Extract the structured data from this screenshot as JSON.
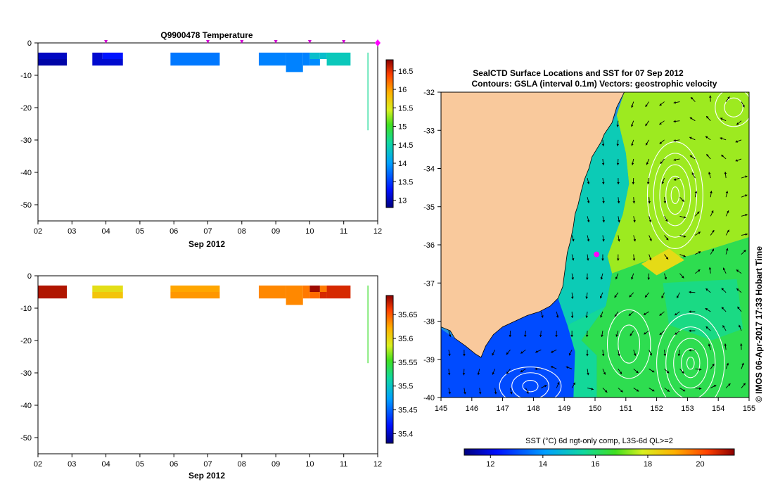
{
  "panels": {
    "temperature": {
      "title": "Q9900478  Temperature",
      "xlabel": "Sep 2012",
      "x_ticks": [
        "02",
        "03",
        "04",
        "05",
        "06",
        "07",
        "08",
        "09",
        "10",
        "11",
        "12"
      ],
      "y_ticks": [
        "0",
        "-10",
        "-20",
        "-30",
        "-40",
        "-50"
      ],
      "colorbar_ticks": [
        "16.5",
        "16",
        "15.5",
        "15",
        "14.5",
        "14",
        "13.5",
        "13"
      ]
    },
    "salinity": {
      "xlabel": "Sep 2012",
      "x_ticks": [
        "02",
        "03",
        "04",
        "05",
        "06",
        "07",
        "08",
        "09",
        "10",
        "11",
        "12"
      ],
      "y_ticks": [
        "0",
        "-10",
        "-20",
        "-30",
        "-40",
        "-50"
      ],
      "colorbar_ticks": [
        "35.65",
        "35.6",
        "35.55",
        "35.5",
        "35.45",
        "35.4"
      ]
    },
    "map": {
      "title_line1": "SealCTD Surface Locations and SST for 07 Sep 2012",
      "title_line2": "Contours: GSLA (interval 0.1m) Vectors: geostrophic velocity",
      "lon_ticks": [
        "145",
        "146",
        "147",
        "148",
        "149",
        "150",
        "151",
        "152",
        "153",
        "154",
        "155"
      ],
      "lat_ticks": [
        "-32",
        "-33",
        "-34",
        "-35",
        "-36",
        "-37",
        "-38",
        "-39",
        "-40"
      ],
      "colorbar_label": "SST (°C) 6d ngt-only comp, L3S-6d QL>=2",
      "colorbar_ticks": [
        "12",
        "14",
        "16",
        "18",
        "20"
      ],
      "credit": "© IMOS 06-Apr-2017 17:33 Hobart Time"
    }
  },
  "chart_data": [
    {
      "type": "heatmap",
      "title": "Q9900478  Temperature",
      "xlabel": "Sep 2012",
      "ylabel": "",
      "x_range_day": [
        2,
        12
      ],
      "ylim": [
        -55,
        0
      ],
      "color_range": [
        12.8,
        16.8
      ],
      "profile_days": [
        4.0,
        7.0,
        8.0,
        9.0,
        10.0,
        11.0,
        12.0
      ],
      "cells": [
        {
          "t0": 2.0,
          "t1": 2.85,
          "d0": -3,
          "d1": -5,
          "v": 13.05
        },
        {
          "t0": 2.0,
          "t1": 2.85,
          "d0": -5,
          "d1": -7,
          "v": 12.95
        },
        {
          "t0": 3.6,
          "t1": 3.9,
          "d0": -3,
          "d1": -5,
          "v": 13.1
        },
        {
          "t0": 3.9,
          "t1": 4.5,
          "d0": -3,
          "d1": -5,
          "v": 13.3
        },
        {
          "t0": 3.6,
          "t1": 4.5,
          "d0": -5,
          "d1": -7,
          "v": 13.1
        },
        {
          "t0": 5.9,
          "t1": 7.35,
          "d0": -3,
          "d1": -7,
          "v": 13.8
        },
        {
          "t0": 8.5,
          "t1": 9.3,
          "d0": -3,
          "d1": -7,
          "v": 13.85
        },
        {
          "t0": 9.3,
          "t1": 9.8,
          "d0": -3,
          "d1": -9,
          "v": 13.85
        },
        {
          "t0": 9.8,
          "t1": 10.0,
          "d0": -3,
          "d1": -7,
          "v": 13.85
        },
        {
          "t0": 10.0,
          "t1": 10.3,
          "d0": -3,
          "d1": -5,
          "v": 14.3
        },
        {
          "t0": 10.0,
          "t1": 10.3,
          "d0": -5,
          "d1": -7,
          "v": 13.9
        },
        {
          "t0": 10.3,
          "t1": 10.5,
          "d0": -3,
          "d1": -5,
          "v": 14.3
        },
        {
          "t0": 10.5,
          "t1": 11.2,
          "d0": -3,
          "d1": -7,
          "v": 14.4
        },
        {
          "t0": 11.7,
          "t1": 11.72,
          "d0": -3,
          "d1": -27,
          "v": 14.6
        }
      ]
    },
    {
      "type": "heatmap",
      "title": "",
      "xlabel": "Sep 2012",
      "ylabel": "",
      "x_range_day": [
        2,
        12
      ],
      "ylim": [
        -55,
        0
      ],
      "color_range": [
        35.38,
        35.69
      ],
      "cells": [
        {
          "t0": 2.0,
          "t1": 2.85,
          "d0": -3,
          "d1": -7,
          "v": 35.68
        },
        {
          "t0": 3.6,
          "t1": 4.5,
          "d0": -3,
          "d1": -5,
          "v": 35.595
        },
        {
          "t0": 3.6,
          "t1": 4.5,
          "d0": -5,
          "d1": -7,
          "v": 35.61
        },
        {
          "t0": 5.9,
          "t1": 7.35,
          "d0": -3,
          "d1": -5,
          "v": 35.625
        },
        {
          "t0": 5.9,
          "t1": 7.35,
          "d0": -5,
          "d1": -7,
          "v": 35.63
        },
        {
          "t0": 8.5,
          "t1": 9.3,
          "d0": -3,
          "d1": -7,
          "v": 35.635
        },
        {
          "t0": 9.3,
          "t1": 9.8,
          "d0": -3,
          "d1": -9,
          "v": 35.635
        },
        {
          "t0": 9.8,
          "t1": 10.0,
          "d0": -3,
          "d1": -7,
          "v": 35.64
        },
        {
          "t0": 10.0,
          "t1": 10.3,
          "d0": -3,
          "d1": -5,
          "v": 35.685
        },
        {
          "t0": 10.0,
          "t1": 10.3,
          "d0": -5,
          "d1": -7,
          "v": 35.645
        },
        {
          "t0": 10.3,
          "t1": 10.5,
          "d0": -3,
          "d1": -5,
          "v": 35.64
        },
        {
          "t0": 10.3,
          "t1": 10.5,
          "d0": -5,
          "d1": -7,
          "v": 35.67
        },
        {
          "t0": 10.5,
          "t1": 11.2,
          "d0": -3,
          "d1": -7,
          "v": 35.67
        },
        {
          "t0": 11.7,
          "t1": 11.72,
          "d0": -3,
          "d1": -27,
          "v": 35.55
        }
      ]
    },
    {
      "type": "heatmap",
      "title": "SealCTD Surface Locations and SST for 07 Sep 2012",
      "subtitle": "Contours: GSLA (interval 0.1m) Vectors: geostrophic velocity",
      "xlim": [
        145,
        155
      ],
      "ylim": [
        -40,
        -32
      ],
      "color_range": [
        11,
        21.3
      ],
      "color_label": "SST (°C) 6d ngt-only comp, L3S-6d QL>=2",
      "ctd_location": {
        "lon": 150.05,
        "lat": -36.25
      },
      "coast": [
        [
          149.0,
          -32.0
        ],
        [
          150.95,
          -32.0
        ],
        [
          150.7,
          -32.4
        ],
        [
          150.55,
          -32.8
        ],
        [
          150.3,
          -33.1
        ],
        [
          150.2,
          -33.3
        ],
        [
          149.9,
          -33.7
        ],
        [
          149.8,
          -34.0
        ],
        [
          149.65,
          -34.3
        ],
        [
          149.55,
          -34.6
        ],
        [
          149.45,
          -34.95
        ],
        [
          149.35,
          -35.2
        ],
        [
          149.3,
          -35.5
        ],
        [
          149.2,
          -35.9
        ],
        [
          149.1,
          -36.2
        ],
        [
          149.05,
          -36.5
        ],
        [
          149.0,
          -36.8
        ],
        [
          148.95,
          -37.1
        ],
        [
          148.8,
          -37.4
        ],
        [
          148.55,
          -37.6
        ],
        [
          148.2,
          -37.75
        ],
        [
          147.8,
          -37.85
        ],
        [
          147.4,
          -38.0
        ],
        [
          147.0,
          -38.15
        ],
        [
          146.7,
          -38.35
        ],
        [
          146.45,
          -38.65
        ],
        [
          146.3,
          -38.95
        ],
        [
          146.1,
          -38.85
        ],
        [
          145.8,
          -38.65
        ],
        [
          145.45,
          -38.45
        ],
        [
          145.3,
          -38.25
        ],
        [
          145.0,
          -38.15
        ],
        [
          145.0,
          -32.0
        ]
      ],
      "sst_regions": [
        {
          "v": 17.4,
          "poly": [
            [
              150.95,
              -32.0
            ],
            [
              155,
              -32.0
            ],
            [
              155,
              -35.8
            ],
            [
              153.0,
              -36.3
            ],
            [
              151.9,
              -36.35
            ],
            [
              150.55,
              -36.75
            ],
            [
              150.4,
              -36.3
            ],
            [
              150.9,
              -35.2
            ],
            [
              151.1,
              -34.4
            ],
            [
              151.0,
              -33.6
            ],
            [
              150.7,
              -32.6
            ]
          ]
        },
        {
          "v": 16.3,
          "poly": [
            [
              155,
              -35.8
            ],
            [
              155,
              -40
            ],
            [
              150.05,
              -40
            ],
            [
              150.05,
              -38.9
            ],
            [
              149.55,
              -38.5
            ],
            [
              150.35,
              -37.6
            ],
            [
              150.55,
              -36.75
            ],
            [
              151.9,
              -36.35
            ],
            [
              153.0,
              -36.3
            ]
          ]
        },
        {
          "v": 15.6,
          "poly": [
            [
              150.35,
              -37.6
            ],
            [
              149.55,
              -38.5
            ],
            [
              150.05,
              -38.9
            ],
            [
              150.05,
              -40
            ],
            [
              149.3,
              -40
            ],
            [
              149.35,
              -38.8
            ],
            [
              149.1,
              -38.1
            ]
          ]
        },
        {
          "v": 13.0,
          "poly": [
            [
              149.1,
              -38.1
            ],
            [
              149.35,
              -38.8
            ],
            [
              149.3,
              -40
            ],
            [
              145,
              -40
            ],
            [
              145,
              -38.2
            ],
            [
              145.45,
              -38.45
            ],
            [
              145.8,
              -38.65
            ],
            [
              146.1,
              -38.85
            ],
            [
              146.3,
              -38.95
            ],
            [
              146.45,
              -38.65
            ],
            [
              146.7,
              -38.35
            ],
            [
              147.0,
              -38.15
            ],
            [
              147.4,
              -38.0
            ],
            [
              147.8,
              -37.85
            ],
            [
              148.2,
              -37.75
            ],
            [
              148.55,
              -37.6
            ],
            [
              148.8,
              -37.4
            ]
          ]
        },
        {
          "v": 15.2,
          "poly": [
            [
              148.95,
              -37.1
            ],
            [
              149.0,
              -36.8
            ],
            [
              149.05,
              -36.5
            ],
            [
              149.1,
              -36.2
            ],
            [
              149.2,
              -35.9
            ],
            [
              149.3,
              -35.5
            ],
            [
              149.35,
              -35.2
            ],
            [
              149.45,
              -34.95
            ],
            [
              149.55,
              -34.6
            ],
            [
              149.65,
              -34.3
            ],
            [
              149.8,
              -34.0
            ],
            [
              149.9,
              -33.7
            ],
            [
              150.2,
              -33.3
            ],
            [
              150.3,
              -33.1
            ],
            [
              150.55,
              -32.8
            ],
            [
              150.7,
              -32.6
            ],
            [
              151.0,
              -33.6
            ],
            [
              151.1,
              -34.4
            ],
            [
              150.9,
              -35.2
            ],
            [
              150.4,
              -36.3
            ],
            [
              150.55,
              -36.75
            ],
            [
              150.35,
              -37.6
            ],
            [
              149.1,
              -38.1
            ],
            [
              148.8,
              -37.4
            ]
          ]
        },
        {
          "v": 15.8,
          "poly": [
            [
              152.2,
              -37.0
            ],
            [
              154.6,
              -36.9
            ],
            [
              154.8,
              -38.2
            ],
            [
              153.8,
              -38.5
            ],
            [
              152.4,
              -38.1
            ]
          ]
        },
        {
          "v": 18.2,
          "poly": [
            [
              151.5,
              -36.5
            ],
            [
              152.4,
              -36.1
            ],
            [
              152.9,
              -36.4
            ],
            [
              152.0,
              -36.8
            ]
          ]
        }
      ],
      "gsla_eddies": [
        {
          "lon": 152.6,
          "lat": -34.7,
          "rx": [
            0.9,
            0.7,
            0.5,
            0.3,
            0.13
          ],
          "ry": [
            1.4,
            1.1,
            0.8,
            0.5,
            0.22
          ]
        },
        {
          "lon": 153.1,
          "lat": -39.1,
          "rx": [
            1.1,
            0.8,
            0.55,
            0.3,
            0.12
          ],
          "ry": [
            1.3,
            0.95,
            0.65,
            0.38,
            0.16
          ]
        },
        {
          "lon": 154.5,
          "lat": -32.4,
          "rx": [
            0.6,
            0.3
          ],
          "ry": [
            0.5,
            0.25
          ]
        },
        {
          "lon": 147.9,
          "lat": -39.7,
          "rx": [
            1.0,
            0.6,
            0.25
          ],
          "ry": [
            0.5,
            0.35,
            0.15
          ]
        },
        {
          "lon": 151.1,
          "lat": -38.6,
          "rx": [
            0.7,
            0.35
          ],
          "ry": [
            0.9,
            0.5
          ]
        }
      ]
    }
  ]
}
